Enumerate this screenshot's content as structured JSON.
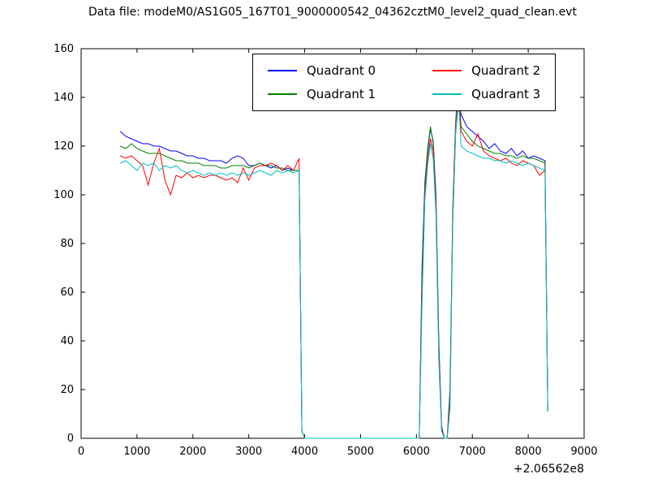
{
  "chart_data": {
    "type": "line",
    "title": "Data file: modeM0/AS1G05_167T01_9000000542_04362cztM0_level2_quad_clean.evt",
    "xlabel": "",
    "ylabel": "",
    "xlim": [
      0,
      9000
    ],
    "ylim": [
      0,
      160
    ],
    "x_ticks": [
      0,
      1000,
      2000,
      3000,
      4000,
      5000,
      6000,
      7000,
      8000,
      9000
    ],
    "y_ticks": [
      0,
      20,
      40,
      60,
      80,
      100,
      120,
      140,
      160
    ],
    "x_offset_label": "+2.06562e8",
    "grid": false,
    "legend_position": "upper center, 2 columns",
    "x": [
      700,
      800,
      900,
      1000,
      1100,
      1200,
      1300,
      1400,
      1500,
      1600,
      1700,
      1800,
      1900,
      2000,
      2100,
      2200,
      2300,
      2400,
      2500,
      2600,
      2700,
      2800,
      2900,
      3000,
      3100,
      3200,
      3300,
      3400,
      3500,
      3600,
      3700,
      3800,
      3900,
      3950,
      4000,
      4500,
      5000,
      5500,
      6000,
      6050,
      6100,
      6150,
      6200,
      6250,
      6300,
      6350,
      6400,
      6450,
      6500,
      6550,
      6600,
      6650,
      6700,
      6750,
      6800,
      6900,
      7000,
      7100,
      7200,
      7300,
      7400,
      7500,
      7600,
      7700,
      7800,
      7900,
      8000,
      8100,
      8200,
      8300,
      8350
    ],
    "series": [
      {
        "name": "Quadrant 0",
        "color": "#0000ff",
        "values": [
          126,
          124,
          123,
          122,
          121,
          121,
          120,
          120,
          119,
          118,
          118,
          117,
          116,
          116,
          115,
          115,
          114,
          114,
          114,
          113,
          115,
          116,
          115,
          112,
          112,
          113,
          112,
          111,
          112,
          110,
          111,
          110,
          110,
          3,
          0,
          0,
          0,
          0,
          0,
          0,
          70,
          105,
          118,
          127,
          122,
          100,
          40,
          5,
          0,
          0,
          20,
          90,
          125,
          138,
          133,
          128,
          126,
          124,
          122,
          119,
          121,
          118,
          117,
          119,
          116,
          118,
          115,
          116,
          115,
          114,
          12
        ]
      },
      {
        "name": "Quadrant 1",
        "color": "#008000",
        "values": [
          120,
          119,
          121,
          119,
          118,
          117,
          117,
          117,
          116,
          115,
          114,
          114,
          113,
          113,
          113,
          112,
          112,
          112,
          111,
          111,
          112,
          112,
          112,
          111,
          112,
          113,
          112,
          112,
          111,
          111,
          110,
          110,
          110,
          3,
          0,
          0,
          0,
          0,
          0,
          0,
          65,
          103,
          119,
          128,
          121,
          98,
          38,
          4,
          0,
          0,
          18,
          95,
          130,
          146,
          128,
          125,
          122,
          120,
          119,
          118,
          117,
          117,
          116,
          116,
          115,
          116,
          115,
          115,
          114,
          113,
          11
        ]
      },
      {
        "name": "Quadrant 2",
        "color": "#ff0000",
        "values": [
          116,
          115,
          116,
          114,
          112,
          104,
          113,
          119,
          106,
          100,
          108,
          107,
          109,
          107,
          108,
          107,
          108,
          108,
          107,
          106,
          107,
          105,
          111,
          106,
          111,
          112,
          112,
          113,
          112,
          110,
          112,
          110,
          115,
          3,
          0,
          0,
          0,
          0,
          0,
          0,
          60,
          100,
          115,
          123,
          118,
          95,
          35,
          4,
          0,
          0,
          15,
          92,
          128,
          143,
          126,
          122,
          120,
          125,
          118,
          116,
          115,
          114,
          115,
          113,
          112,
          114,
          113,
          112,
          108,
          110,
          11
        ]
      },
      {
        "name": "Quadrant 3",
        "color": "#00bfbf",
        "values": [
          113,
          114,
          112,
          110,
          113,
          112,
          113,
          110,
          112,
          111,
          112,
          110,
          109,
          110,
          109,
          108,
          109,
          108,
          109,
          108,
          109,
          108,
          109,
          108,
          109,
          110,
          109,
          108,
          110,
          109,
          110,
          109,
          110,
          3,
          0,
          0,
          0,
          0,
          0,
          0,
          55,
          98,
          112,
          121,
          115,
          92,
          32,
          3,
          0,
          0,
          12,
          88,
          125,
          141,
          120,
          118,
          117,
          116,
          115,
          115,
          114,
          114,
          113,
          114,
          113,
          112,
          113,
          112,
          111,
          110,
          11
        ]
      }
    ]
  }
}
